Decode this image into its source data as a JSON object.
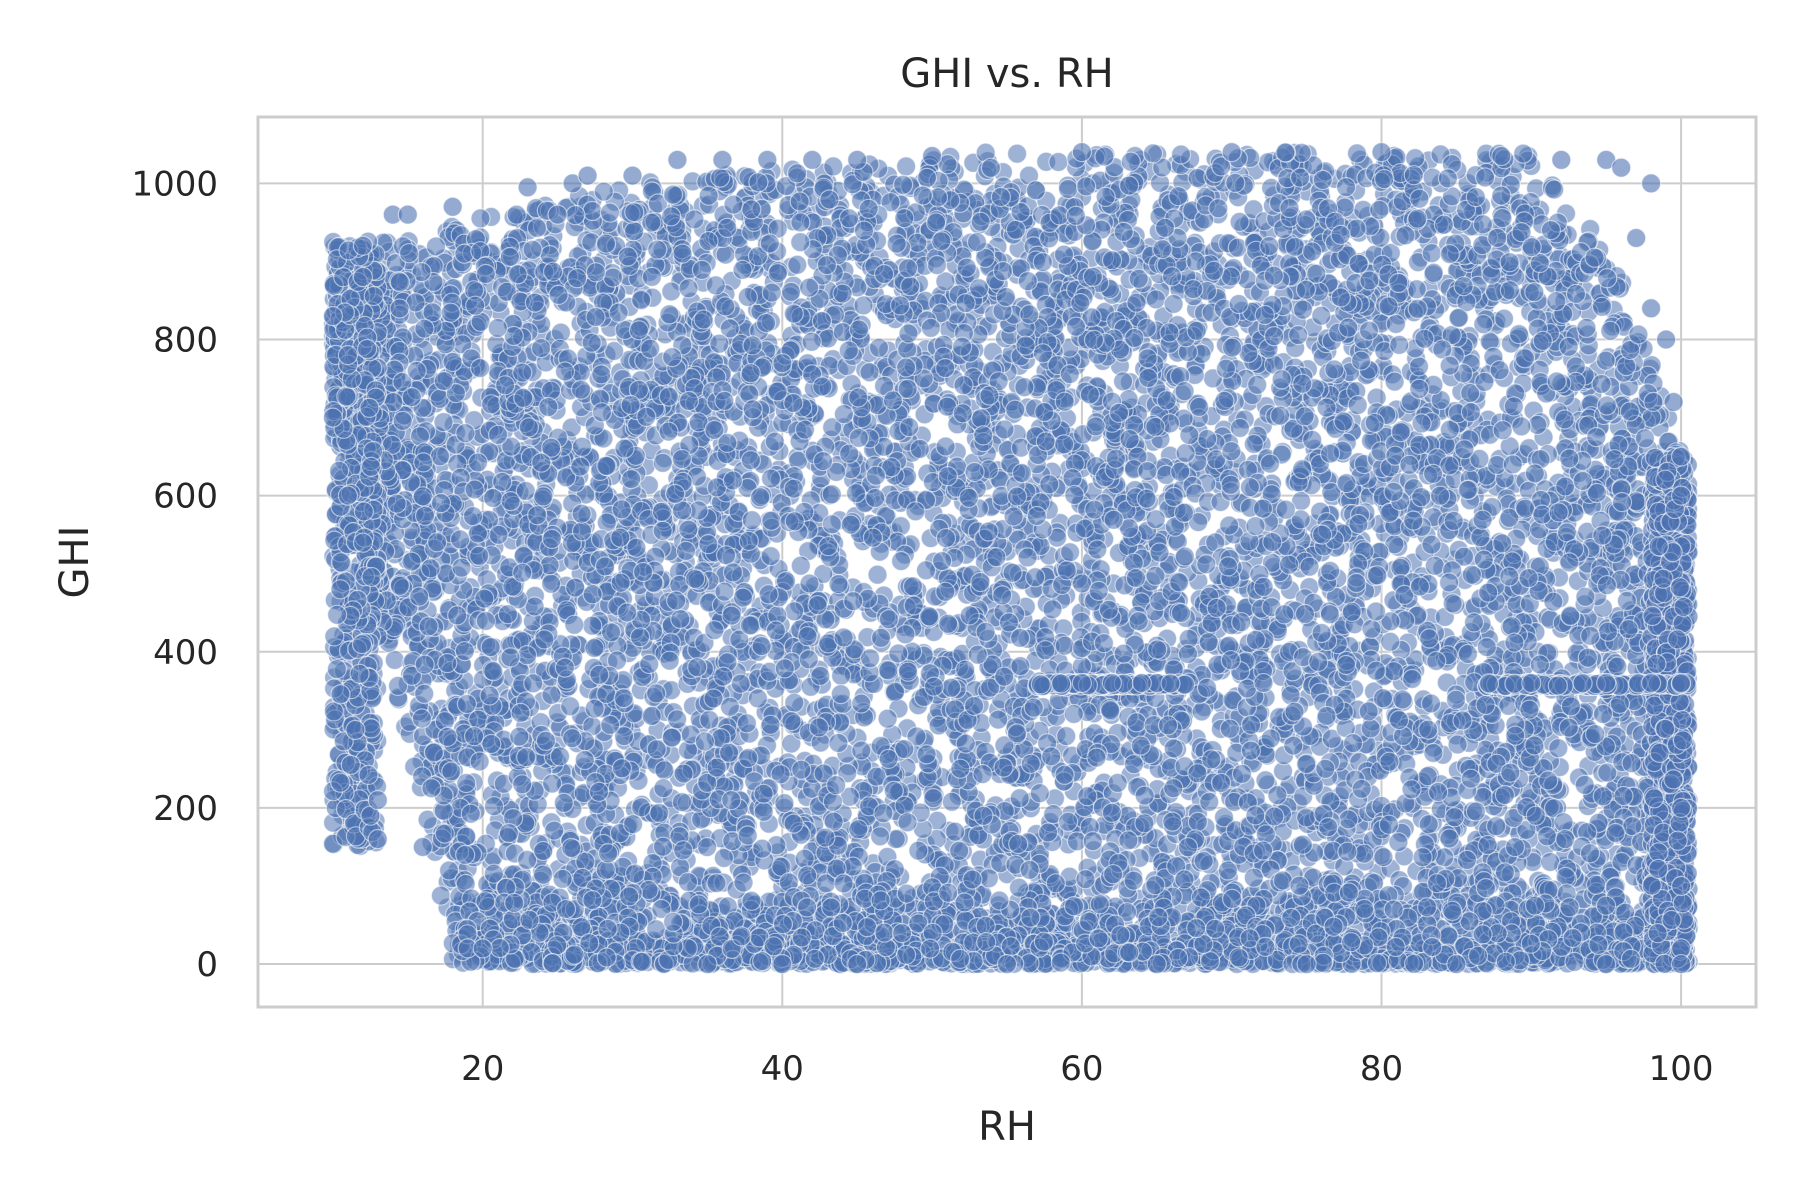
{
  "chart_data": {
    "type": "scatter",
    "title": "GHI vs. RH",
    "xlabel": "RH",
    "ylabel": "GHI",
    "xlim": [
      5,
      105
    ],
    "ylim": [
      -55,
      1085
    ],
    "xticks": [
      20,
      40,
      60,
      80,
      100
    ],
    "yticks": [
      0,
      200,
      400,
      600,
      800,
      1000
    ],
    "grid": true,
    "legend": "none",
    "marker_color": "#4c72b0",
    "marker_alpha": 0.5,
    "series": [
      {
        "x_range": [
          10,
          100.5
        ],
        "y_range": [
          0,
          1040
        ],
        "points": [
          [
            10,
            700
          ],
          [
            10,
            830
          ],
          [
            10.5,
            480
          ],
          [
            11,
            600
          ],
          [
            11,
            780
          ],
          [
            11.5,
            300
          ],
          [
            12,
            920
          ],
          [
            12,
            880
          ],
          [
            12.5,
            190
          ],
          [
            13,
            160
          ],
          [
            13,
            210
          ],
          [
            14,
            960
          ],
          [
            15,
            960
          ],
          [
            16,
            150
          ],
          [
            18,
            970
          ],
          [
            19,
            20
          ],
          [
            20,
            20
          ],
          [
            23,
            995
          ],
          [
            25,
            960
          ],
          [
            26,
            1000
          ],
          [
            27,
            1010
          ],
          [
            30,
            1010
          ],
          [
            33,
            1030
          ],
          [
            36,
            1030
          ],
          [
            39,
            1030
          ],
          [
            42,
            1030
          ],
          [
            45,
            1030
          ],
          [
            50,
            1035
          ],
          [
            60,
            1040
          ],
          [
            70,
            1040
          ],
          [
            80,
            1040
          ],
          [
            88,
            1035
          ],
          [
            92,
            1030
          ],
          [
            95,
            1030
          ],
          [
            96,
            1020
          ],
          [
            98,
            1000
          ],
          [
            97,
            930
          ],
          [
            98,
            840
          ],
          [
            99,
            800
          ],
          [
            99.5,
            720
          ],
          [
            100,
            650
          ],
          [
            100,
            600
          ],
          [
            60,
            360
          ],
          [
            62,
            360
          ],
          [
            64,
            360
          ],
          [
            90,
            360
          ],
          [
            95,
            360
          ],
          [
            98,
            360
          ],
          [
            100,
            360
          ],
          [
            100,
            200
          ],
          [
            100,
            100
          ],
          [
            100,
            20
          ],
          [
            100,
            0
          ],
          [
            35,
            0
          ],
          [
            40,
            0
          ],
          [
            45,
            0
          ],
          [
            55,
            0
          ],
          [
            65,
            0
          ],
          [
            75,
            0
          ],
          [
            85,
            0
          ],
          [
            95,
            0
          ]
        ]
      }
    ]
  }
}
